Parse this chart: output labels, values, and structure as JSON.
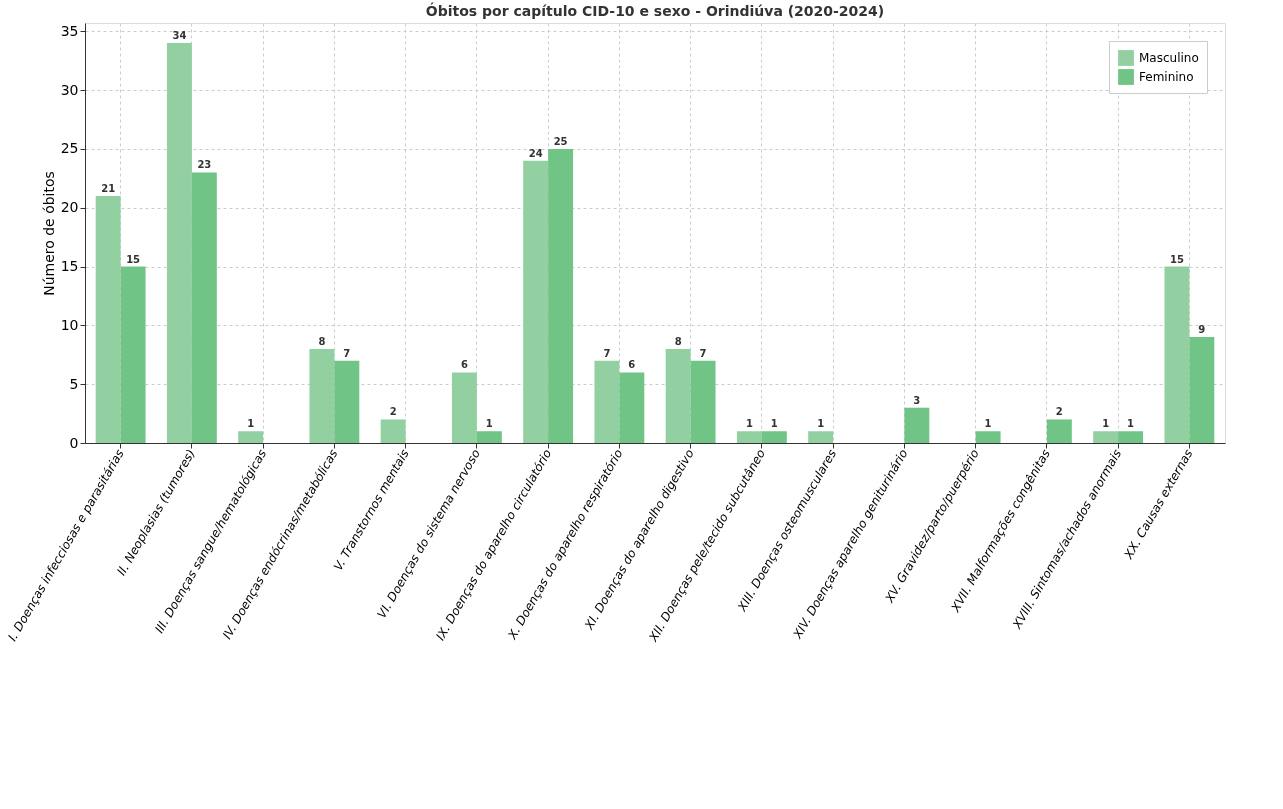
{
  "chart_data": {
    "type": "bar",
    "title": "Óbitos por capítulo CID-10 e sexo - Orindiúva (2020-2024)",
    "ylabel": "Número de óbitos",
    "categories": [
      "I. Doenças infecciosas e parasitárias",
      "II. Neoplasias (tumores)",
      "III. Doenças sangue/hematológicas",
      "IV. Doenças endócrinas/metabólicas",
      "V. Transtornos mentais",
      "VI. Doenças do sistema nervoso",
      "IX. Doenças do aparelho circulatório",
      "X. Doenças do aparelho respiratório",
      "XI. Doenças do aparelho digestivo",
      "XII. Doenças pele/tecido subcutâneo",
      "XIII. Doenças osteomusculares",
      "XIV. Doenças aparelho geniturinário",
      "XV. Gravidez/parto/puerpério",
      "XVII. Malformações congênitas",
      "XVIII. Sintomas/achados anormais",
      "XX. Causas externas"
    ],
    "series": [
      {
        "name": "Masculino",
        "color": "#92d0a2",
        "values": [
          21,
          34,
          1,
          8,
          2,
          6,
          24,
          7,
          8,
          1,
          1,
          0,
          0,
          0,
          1,
          15
        ],
        "value_labels": [
          "21",
          "34",
          "1",
          "8",
          "2",
          "6",
          "24",
          "7",
          "8",
          "1",
          "1",
          null,
          null,
          null,
          "1",
          "15"
        ]
      },
      {
        "name": "Feminino",
        "color": "#6fc486",
        "values": [
          15,
          23,
          0,
          7,
          0,
          1,
          25,
          6,
          7,
          1,
          0,
          3,
          1,
          2,
          1,
          9
        ],
        "value_labels": [
          "15",
          "23",
          null,
          "7",
          null,
          "1",
          "25",
          "6",
          "7",
          "1",
          null,
          "3",
          "1",
          "2",
          "1",
          "9"
        ]
      }
    ],
    "ylim": [
      0,
      35.7
    ],
    "yticks": [
      0,
      5,
      10,
      15,
      20,
      25,
      30,
      35
    ],
    "grid": true,
    "legend": "top right"
  }
}
